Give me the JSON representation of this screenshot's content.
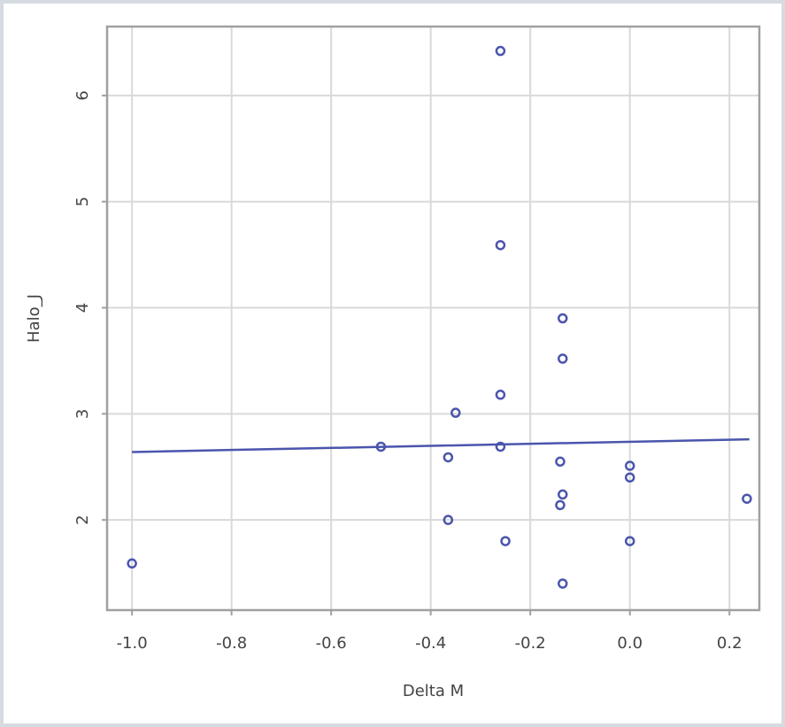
{
  "chart_data": {
    "type": "scatter",
    "title": "",
    "xlabel": "Delta  M",
    "ylabel": "Halo_J",
    "xlim": [
      -1.05,
      0.26
    ],
    "ylim": [
      1.15,
      6.65
    ],
    "grid": true,
    "x_ticks": [
      -1.0,
      -0.8,
      -0.6,
      -0.4,
      -0.2,
      0.0,
      0.2
    ],
    "x_tick_labels": [
      "-1.0",
      "-0.8",
      "-0.6",
      "-0.4",
      "-0.2",
      "0.0",
      "0.2"
    ],
    "y_ticks": [
      2,
      3,
      4,
      5,
      6
    ],
    "y_tick_labels": [
      "2",
      "3",
      "4",
      "5",
      "6"
    ],
    "colors": {
      "points": "#4b55ad",
      "fit_line": "#4b55ad",
      "grid": "#d9d9d9",
      "axes": "#a0a0a0"
    },
    "points": [
      {
        "x": -1.0,
        "y": 1.59
      },
      {
        "x": -0.5,
        "y": 2.69
      },
      {
        "x": -0.365,
        "y": 2.59
      },
      {
        "x": -0.365,
        "y": 2.0
      },
      {
        "x": -0.35,
        "y": 3.01
      },
      {
        "x": -0.26,
        "y": 6.42
      },
      {
        "x": -0.26,
        "y": 4.59
      },
      {
        "x": -0.26,
        "y": 3.18
      },
      {
        "x": -0.26,
        "y": 2.69
      },
      {
        "x": -0.25,
        "y": 1.8
      },
      {
        "x": -0.14,
        "y": 2.55
      },
      {
        "x": -0.14,
        "y": 2.14
      },
      {
        "x": -0.135,
        "y": 3.9
      },
      {
        "x": -0.135,
        "y": 3.52
      },
      {
        "x": -0.135,
        "y": 2.24
      },
      {
        "x": -0.135,
        "y": 1.4
      },
      {
        "x": 0.0,
        "y": 2.51
      },
      {
        "x": 0.0,
        "y": 2.4
      },
      {
        "x": 0.0,
        "y": 1.8
      },
      {
        "x": 0.235,
        "y": 2.2
      }
    ],
    "fit_line": [
      {
        "x": -1.0,
        "y": 2.64
      },
      {
        "x": 0.24,
        "y": 2.76
      }
    ]
  }
}
